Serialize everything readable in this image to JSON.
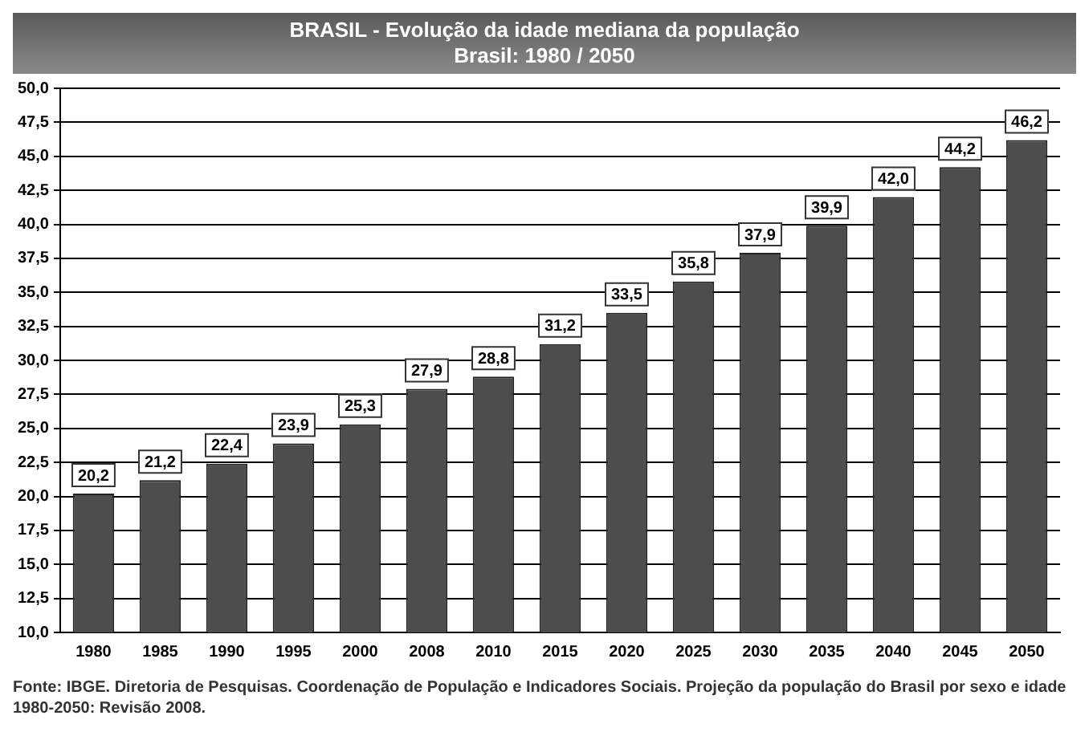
{
  "chart_data": {
    "type": "bar",
    "title": "BRASIL - Evolução da idade mediana da população",
    "subtitle": "Brasil: 1980 / 2050",
    "categories": [
      "1980",
      "1985",
      "1990",
      "1995",
      "2000",
      "2008",
      "2010",
      "2015",
      "2020",
      "2025",
      "2030",
      "2035",
      "2040",
      "2045",
      "2050"
    ],
    "values": [
      20.2,
      21.2,
      22.4,
      23.9,
      25.3,
      27.9,
      28.8,
      31.2,
      33.5,
      35.8,
      37.9,
      39.9,
      42.0,
      44.2,
      46.2
    ],
    "value_labels": [
      "20,2",
      "21,2",
      "22,4",
      "23,9",
      "25,3",
      "27,9",
      "28,8",
      "31,2",
      "33,5",
      "35,8",
      "37,9",
      "39,9",
      "42,0",
      "44,2",
      "46,2"
    ],
    "color": "#4d4d4d",
    "ylim": [
      10,
      50
    ],
    "yticks": [
      {
        "value": 10,
        "label": "10,0"
      },
      {
        "value": 12.5,
        "label": "12,5"
      },
      {
        "value": 15,
        "label": "15,0"
      },
      {
        "value": 17.5,
        "label": "17,5"
      },
      {
        "value": 20,
        "label": "20,0"
      },
      {
        "value": 22.5,
        "label": "22,5"
      },
      {
        "value": 25,
        "label": "25,0"
      },
      {
        "value": 27.5,
        "label": "27,5"
      },
      {
        "value": 30,
        "label": "30,0"
      },
      {
        "value": 32.5,
        "label": "32,5"
      },
      {
        "value": 35,
        "label": "35,0"
      },
      {
        "value": 37.5,
        "label": "37,5"
      },
      {
        "value": 40,
        "label": "40,0"
      },
      {
        "value": 42.5,
        "label": "42,5"
      },
      {
        "value": 45,
        "label": "45,0"
      },
      {
        "value": 47.5,
        "label": "47,5"
      },
      {
        "value": 50,
        "label": "50,0"
      }
    ],
    "grid": "y",
    "annotations": [
      "Fonte: IBGE. Diretoria de Pesquisas. Coordenação de População e Indicadores Sociais. Projeção da população do Brasil por sexo e idade 1980-2050: Revisão 2008."
    ]
  }
}
